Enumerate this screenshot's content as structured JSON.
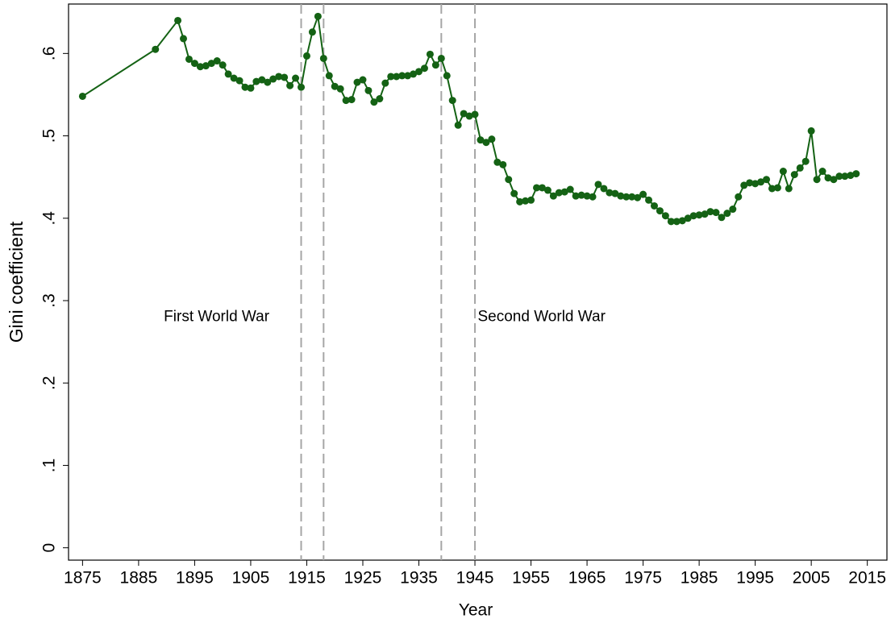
{
  "chart_data": {
    "type": "line",
    "xlabel": "Year",
    "ylabel": "Gini coefficient",
    "color": "#146214",
    "x": [
      1875,
      1888,
      1892,
      1893,
      1894,
      1895,
      1896,
      1897,
      1898,
      1899,
      1900,
      1901,
      1902,
      1903,
      1904,
      1905,
      1906,
      1907,
      1908,
      1909,
      1910,
      1911,
      1912,
      1913,
      1914,
      1915,
      1916,
      1917,
      1918,
      1919,
      1920,
      1921,
      1922,
      1923,
      1924,
      1925,
      1926,
      1927,
      1928,
      1929,
      1930,
      1931,
      1932,
      1933,
      1934,
      1935,
      1936,
      1937,
      1938,
      1939,
      1940,
      1941,
      1942,
      1943,
      1944,
      1945,
      1946,
      1947,
      1948,
      1949,
      1950,
      1951,
      1952,
      1953,
      1954,
      1955,
      1956,
      1957,
      1958,
      1959,
      1960,
      1961,
      1962,
      1963,
      1964,
      1965,
      1966,
      1967,
      1968,
      1969,
      1970,
      1971,
      1972,
      1973,
      1974,
      1975,
      1976,
      1977,
      1978,
      1979,
      1980,
      1981,
      1982,
      1983,
      1984,
      1985,
      1986,
      1987,
      1988,
      1989,
      1990,
      1991,
      1992,
      1993,
      1994,
      1995,
      1996,
      1997,
      1998,
      1999,
      2000,
      2001,
      2002,
      2003,
      2004,
      2005,
      2006,
      2007,
      2008,
      2009,
      2010,
      2011,
      2012,
      2013
    ],
    "values": [
      0.548,
      0.605,
      0.64,
      0.618,
      0.593,
      0.588,
      0.584,
      0.585,
      0.588,
      0.591,
      0.586,
      0.575,
      0.57,
      0.567,
      0.559,
      0.558,
      0.566,
      0.568,
      0.565,
      0.569,
      0.572,
      0.571,
      0.561,
      0.57,
      0.559,
      0.597,
      0.626,
      0.645,
      0.594,
      0.573,
      0.56,
      0.557,
      0.543,
      0.544,
      0.565,
      0.568,
      0.555,
      0.541,
      0.545,
      0.564,
      0.572,
      0.572,
      0.573,
      0.573,
      0.575,
      0.578,
      0.582,
      0.599,
      0.586,
      0.594,
      0.573,
      0.543,
      0.513,
      0.527,
      0.524,
      0.526,
      0.495,
      0.492,
      0.496,
      0.468,
      0.465,
      0.447,
      0.43,
      0.42,
      0.421,
      0.422,
      0.437,
      0.437,
      0.434,
      0.427,
      0.431,
      0.432,
      0.435,
      0.427,
      0.428,
      0.427,
      0.426,
      0.441,
      0.436,
      0.431,
      0.43,
      0.427,
      0.426,
      0.426,
      0.425,
      0.429,
      0.422,
      0.415,
      0.409,
      0.403,
      0.396,
      0.396,
      0.397,
      0.4,
      0.403,
      0.404,
      0.405,
      0.408,
      0.407,
      0.401,
      0.406,
      0.411,
      0.426,
      0.44,
      0.443,
      0.442,
      0.444,
      0.447,
      0.436,
      0.437,
      0.457,
      0.436,
      0.453,
      0.461,
      0.469,
      0.506,
      0.447,
      0.457,
      0.449,
      0.447,
      0.451,
      0.451,
      0.452,
      0.454
    ],
    "xlim": [
      1872.5,
      2018.5
    ],
    "ylim": [
      -0.015,
      0.66
    ],
    "xticks": [
      1875,
      1885,
      1895,
      1905,
      1915,
      1925,
      1935,
      1945,
      1955,
      1965,
      1975,
      1985,
      1995,
      2005,
      2015
    ],
    "yticks": [
      0,
      {
        "value": 0.1,
        "label": ".1"
      },
      {
        "value": 0.2,
        "label": ".2"
      },
      {
        "value": 0.3,
        "label": ".3"
      },
      {
        "value": 0.4,
        "label": ".4"
      },
      {
        "value": 0.5,
        "label": ".5"
      },
      {
        "value": 0.6,
        "label": ".6"
      }
    ],
    "reference_lines": [
      1914,
      1918,
      1939,
      1945
    ],
    "reference_color": "#a6a6a6",
    "annotations": [
      {
        "text": "First World War",
        "x": 1889.5,
        "y": 0.28
      },
      {
        "text": "Second World War",
        "x": 1945.5,
        "y": 0.28
      }
    ]
  }
}
